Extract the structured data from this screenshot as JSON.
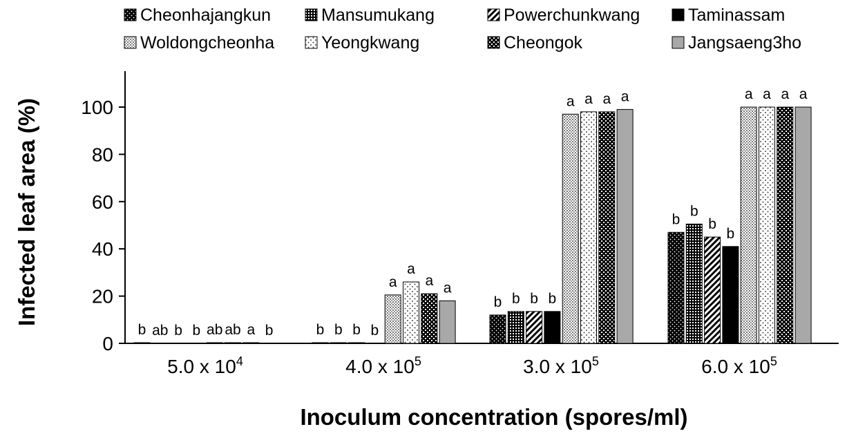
{
  "chart_data": {
    "type": "bar",
    "title": "",
    "xlabel": "Inoculum concentration (spores/ml)",
    "ylabel": "Infected leaf area (%)",
    "ylim": [
      0,
      110
    ],
    "yticks": [
      0,
      20,
      40,
      60,
      80,
      100
    ],
    "grid": false,
    "legend_position": "top",
    "categories": [
      {
        "base": "5.0 x 10",
        "exp": "4"
      },
      {
        "base": "4.0 x 10",
        "exp": "5"
      },
      {
        "base": "3.0 x 10",
        "exp": "5"
      },
      {
        "base": "6.0 x 10",
        "exp": "5"
      }
    ],
    "series": [
      {
        "name": "Cheonhajangkun",
        "pattern": "dots-dark",
        "values": [
          0.3,
          0.3,
          12,
          47
        ],
        "letters": [
          "b",
          "b",
          "b",
          "b"
        ]
      },
      {
        "name": "Mansumukang",
        "pattern": "grid-dark",
        "values": [
          0,
          0.3,
          13.5,
          50.5
        ],
        "letters": [
          "ab",
          "b",
          "b",
          "b"
        ]
      },
      {
        "name": "Powerchunkwang",
        "pattern": "diagonal",
        "values": [
          0,
          0.3,
          13.5,
          45
        ],
        "letters": [
          "b",
          "b",
          "b",
          "b"
        ]
      },
      {
        "name": "Taminassam",
        "pattern": "solid-black",
        "values": [
          0,
          0,
          13.5,
          41
        ],
        "letters": [
          "b",
          "b",
          "b",
          "b"
        ]
      },
      {
        "name": "Woldongcheonha",
        "pattern": "dots-light",
        "values": [
          0.3,
          20.5,
          97,
          100
        ],
        "letters": [
          "ab",
          "a",
          "a",
          "a"
        ]
      },
      {
        "name": "Yeongkwang",
        "pattern": "sparse-dots",
        "values": [
          0.3,
          26,
          98,
          100
        ],
        "letters": [
          "ab",
          "a",
          "a",
          "a"
        ]
      },
      {
        "name": "Cheongok",
        "pattern": "checker",
        "values": [
          0.3,
          21,
          98,
          100
        ],
        "letters": [
          "a",
          "a",
          "a",
          "a"
        ]
      },
      {
        "name": "Jangsaeng3ho",
        "pattern": "solid-gray",
        "values": [
          0,
          18,
          99,
          100
        ],
        "letters": [
          "b",
          "a",
          "a",
          "a"
        ]
      }
    ]
  }
}
